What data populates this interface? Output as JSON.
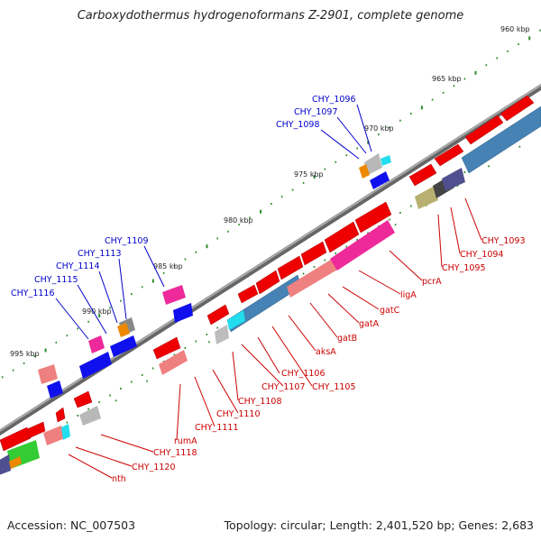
{
  "title": "Carboxydothermus hydrogenoformans Z-2901, complete genome",
  "footer": {
    "accession": "Accession: NC_007503",
    "summary": "Topology: circular; Length: 2,401,520 bp; Genes: 2,683"
  },
  "colors": {
    "backbone": "#7a7a7a",
    "tick": "#2e8b2e",
    "blue_label": "#0000cc",
    "red_label": "#cc0000",
    "gene_red": "#ee0000",
    "gene_blue": "#1010ee",
    "gene_pink": "#ee2a9a",
    "gene_salmon": "#ef8080",
    "gene_steel": "#4682b4",
    "gene_grey": "#b8b8b8",
    "gene_cyan": "#22ddee",
    "gene_green": "#33cc33",
    "gene_orange": "#ee8800",
    "gene_olive": "#b8b070",
    "gene_purple": "#505090"
  },
  "kbp_labels": [
    "960 kbp",
    "965 kbp",
    "970 kbp",
    "975 kbp",
    "980 kbp",
    "985 kbp",
    "990 kbp",
    "995 kbp"
  ],
  "blue_labels": [
    "CHY_1096",
    "CHY_1097",
    "CHY_1098",
    "CHY_1109",
    "CHY_1113",
    "CHY_1114",
    "CHY_1115",
    "CHY_1116"
  ],
  "red_labels": [
    "CHY_1093",
    "CHY_1094",
    "CHY_1095",
    "pcrA",
    "ligA",
    "gatC",
    "gatA",
    "gatB",
    "aksA",
    "CHY_1105",
    "CHY_1106",
    "CHY_1107",
    "CHY_1108",
    "CHY_1110",
    "CHY_1111",
    "rumA",
    "CHY_1118",
    "CHY_1120",
    "nth"
  ]
}
